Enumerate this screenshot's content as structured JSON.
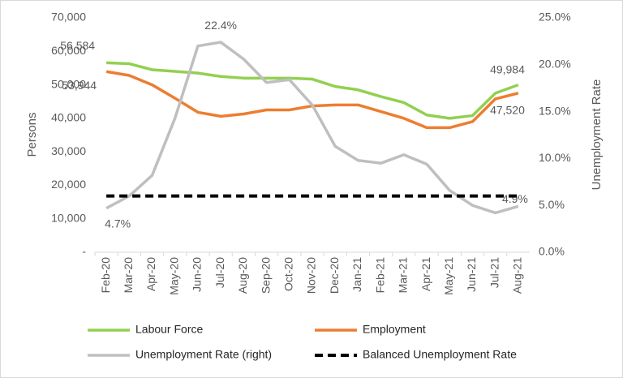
{
  "chart_data": {
    "type": "line",
    "categories": [
      "Feb-20",
      "Mar-20",
      "Apr-20",
      "May-20",
      "Jun-20",
      "Jul-20",
      "Aug-20",
      "Sep-20",
      "Oct-20",
      "Nov-20",
      "Dec-20",
      "Jan-21",
      "Feb-21",
      "Mar-21",
      "Apr-21",
      "May-21",
      "Jun-21",
      "Jul-21",
      "Aug-21"
    ],
    "ylabel": "Persons",
    "y2label": "Unemployment Rate",
    "ylim": [
      0,
      70000
    ],
    "yticks": [
      {
        "value": 0,
        "label": "-"
      },
      {
        "value": 10000,
        "label": "10,000"
      },
      {
        "value": 20000,
        "label": "20,000"
      },
      {
        "value": 30000,
        "label": "30,000"
      },
      {
        "value": 40000,
        "label": "40,000"
      },
      {
        "value": 50000,
        "label": "50,000"
      },
      {
        "value": 60000,
        "label": "60,000"
      },
      {
        "value": 70000,
        "label": "70,000"
      }
    ],
    "y2lim": [
      0,
      25
    ],
    "y2ticks": [
      {
        "value": 0,
        "label": "0.0%"
      },
      {
        "value": 5,
        "label": "5.0%"
      },
      {
        "value": 10,
        "label": "10.0%"
      },
      {
        "value": 15,
        "label": "15.0%"
      },
      {
        "value": 20,
        "label": "20.0%"
      },
      {
        "value": 25,
        "label": "25.0%"
      }
    ],
    "legend": "bottom",
    "series": [
      {
        "name": "Labour Force",
        "color": "#92d050",
        "dashed": false,
        "values": [
          56584,
          56300,
          54500,
          54000,
          53500,
          52500,
          52000,
          52000,
          52000,
          51700,
          49500,
          48500,
          46500,
          44700,
          41000,
          40000,
          40800,
          47500,
          49984
        ],
        "value_labels": [
          "56,584",
          null,
          null,
          null,
          null,
          null,
          null,
          null,
          null,
          null,
          null,
          null,
          null,
          null,
          null,
          null,
          null,
          null,
          "49,984"
        ]
      },
      {
        "name": "Employment",
        "color": "#ed7d31",
        "dashed": false,
        "values": [
          53944,
          52800,
          50000,
          46000,
          41800,
          40600,
          41300,
          42500,
          42500,
          43700,
          44000,
          44000,
          42000,
          40000,
          37200,
          37200,
          39000,
          45800,
          47520
        ],
        "value_labels": [
          "53,944",
          null,
          null,
          null,
          null,
          null,
          null,
          null,
          null,
          null,
          null,
          null,
          null,
          null,
          null,
          null,
          null,
          null,
          "47,520"
        ]
      },
      {
        "name": "Unemployment Rate (right)",
        "color": "#bfbfbf",
        "dashed": false,
        "axis": "y2",
        "values": [
          4.7,
          6.0,
          8.2,
          14.3,
          22.0,
          22.4,
          20.6,
          18.1,
          18.4,
          15.7,
          11.3,
          9.8,
          9.5,
          10.4,
          9.4,
          6.6,
          5.0,
          4.2,
          4.9
        ],
        "value_labels": [
          "4.7%",
          null,
          null,
          null,
          null,
          "22.4%",
          null,
          null,
          null,
          null,
          null,
          null,
          null,
          null,
          null,
          null,
          null,
          null,
          "4.9%"
        ]
      },
      {
        "name": "Balanced Unemployment Rate",
        "color": "#000000",
        "dashed": true,
        "axis": "y2",
        "values": [
          6,
          6,
          6,
          6,
          6,
          6,
          6,
          6,
          6,
          6,
          6,
          6,
          6,
          6,
          6,
          6,
          6,
          6,
          6
        ]
      }
    ]
  }
}
